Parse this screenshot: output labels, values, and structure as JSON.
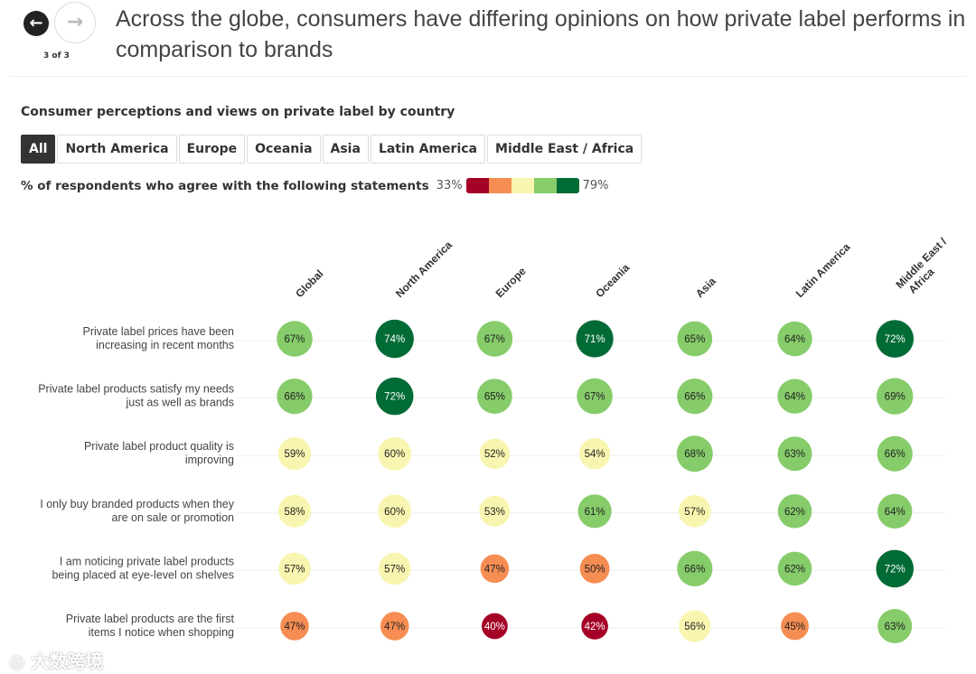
{
  "header": {
    "title": "Across the globe, consumers have differing opinions on how private label performs in comparison to brands",
    "pager": "3 of 3",
    "prev_icon": "←",
    "next_icon": "→"
  },
  "watermark": "大数跨境",
  "chart_data": {
    "type": "heatmap",
    "title": "Consumer perceptions and views on private label by country",
    "filters": [
      "All",
      "North America",
      "Europe",
      "Oceania",
      "Asia",
      "Latin America",
      "Middle East / Africa"
    ],
    "active_filter": "All",
    "legend": {
      "label": "% of respondents who agree with the following statements",
      "min_label": "33%",
      "max_label": "79%",
      "min": 33,
      "max": 79,
      "colors": [
        "#a50026",
        "#f68d52",
        "#f8f5b0",
        "#86cc6a",
        "#006b35"
      ]
    },
    "columns": [
      "Global",
      "North America",
      "Europe",
      "Oceania",
      "Asia",
      "Latin America",
      "Middle East / Africa"
    ],
    "rows": [
      {
        "label": [
          "Private label prices have been",
          "increasing in recent months"
        ],
        "values": [
          67,
          74,
          67,
          71,
          65,
          64,
          72
        ]
      },
      {
        "label": [
          "Private label products satisfy my needs",
          "just as well as brands"
        ],
        "values": [
          66,
          72,
          65,
          67,
          66,
          64,
          69
        ]
      },
      {
        "label": [
          "Private label product quality is",
          "improving"
        ],
        "values": [
          59,
          60,
          52,
          54,
          68,
          63,
          66
        ]
      },
      {
        "label": [
          "I only buy branded products when they",
          "are on sale or promotion"
        ],
        "values": [
          58,
          60,
          53,
          61,
          57,
          62,
          64
        ]
      },
      {
        "label": [
          "I am noticing private label products",
          "being placed at eye-level on shelves"
        ],
        "values": [
          57,
          57,
          47,
          50,
          66,
          62,
          72
        ]
      },
      {
        "label": [
          "Private label products are the first",
          "items I notice when shopping"
        ],
        "values": [
          47,
          47,
          40,
          42,
          56,
          45,
          63
        ]
      }
    ],
    "unit": "%"
  }
}
